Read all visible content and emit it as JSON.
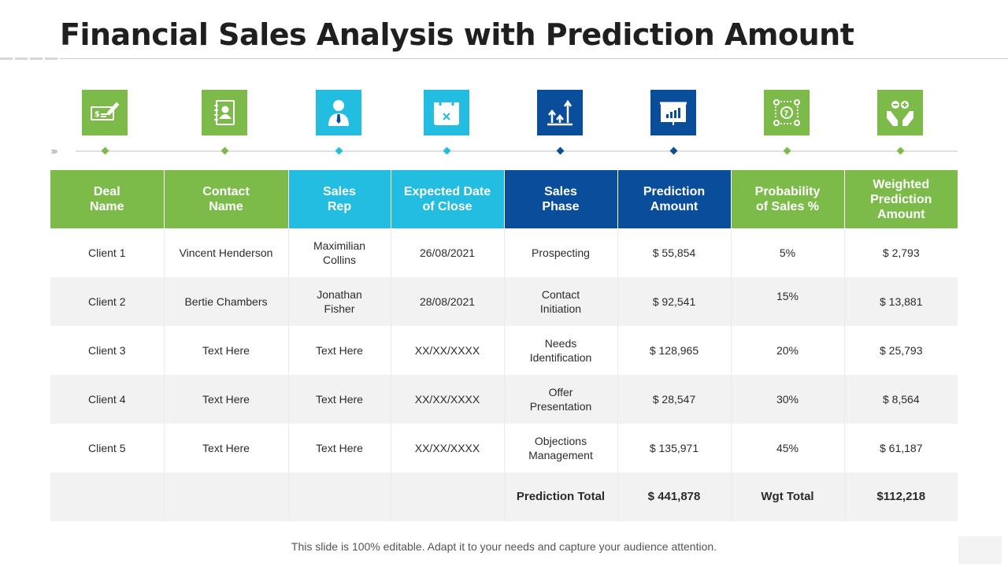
{
  "title": "Financial Sales Analysis with Prediction Amount",
  "colors": {
    "green": "#7cbb4a",
    "cyan": "#22bde0",
    "navy": "#0a4e9b",
    "row_alt": "#f2f2f2"
  },
  "icons": [
    {
      "name": "cheque-icon",
      "color": "#7cbb4a"
    },
    {
      "name": "contact-book-icon",
      "color": "#7cbb4a"
    },
    {
      "name": "sales-rep-icon",
      "color": "#22bde0"
    },
    {
      "name": "calendar-icon",
      "color": "#22bde0"
    },
    {
      "name": "growth-arrows-icon",
      "color": "#0a4e9b"
    },
    {
      "name": "presentation-chart-icon",
      "color": "#0a4e9b"
    },
    {
      "name": "probability-gear-icon",
      "color": "#7cbb4a"
    },
    {
      "name": "hands-plus-minus-icon",
      "color": "#7cbb4a"
    }
  ],
  "table": {
    "headers": [
      {
        "label": "Deal\nName",
        "color": "#7cbb4a"
      },
      {
        "label": "Contact\nName",
        "color": "#7cbb4a"
      },
      {
        "label": "Sales\nRep",
        "color": "#22bde0"
      },
      {
        "label": "Expected Date\nof Close",
        "color": "#22bde0"
      },
      {
        "label": "Sales\nPhase",
        "color": "#0a4e9b"
      },
      {
        "label": "Prediction\nAmount",
        "color": "#0a4e9b"
      },
      {
        "label": "Probability\nof Sales %",
        "color": "#7cbb4a"
      },
      {
        "label": "Weighted\nPrediction\nAmount",
        "color": "#7cbb4a"
      }
    ],
    "rows": [
      [
        "Client 1",
        "Vincent Henderson",
        "Maximilian\nCollins",
        "26/08/2021",
        "Prospecting",
        "$ 55,854",
        "5%",
        "$ 2,793"
      ],
      [
        "Client 2",
        "Bertie Chambers",
        "Jonathan\nFisher",
        "28/08/2021",
        "Contact\nInitiation",
        "$ 92,541",
        "15%",
        "$ 13,881"
      ],
      [
        "Client 3",
        "Text Here",
        "Text Here",
        "XX/XX/XXXX",
        "Needs\nIdentification",
        "$ 128,965",
        "20%",
        "$ 25,793"
      ],
      [
        "Client 4",
        "Text Here",
        "Text Here",
        "XX/XX/XXXX",
        "Offer\nPresentation",
        "$ 28,547",
        "30%",
        "$ 8,564"
      ],
      [
        "Client 5",
        "Text Here",
        "Text Here",
        "XX/XX/XXXX",
        "Objections\nManagement",
        "$ 135,971",
        "45%",
        "$ 61,187"
      ]
    ],
    "total_row": [
      "",
      "",
      "",
      "",
      "Prediction Total",
      "$ 441,878",
      "Wgt Total",
      "$112,218"
    ]
  },
  "footer": "This slide is 100% editable. Adapt it to your needs and capture your audience attention."
}
